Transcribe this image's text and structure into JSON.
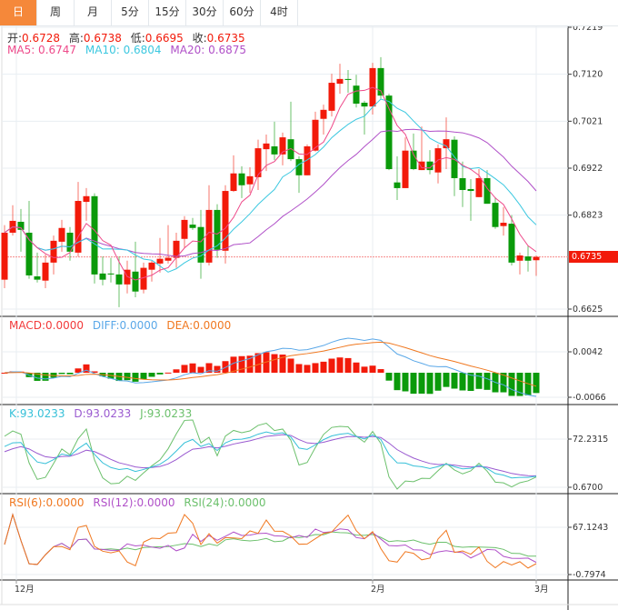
{
  "tabs": [
    {
      "label": "日",
      "active": true
    },
    {
      "label": "周"
    },
    {
      "label": "月"
    },
    {
      "label": "5分"
    },
    {
      "label": "15分"
    },
    {
      "label": "30分"
    },
    {
      "label": "60分"
    },
    {
      "label": "4时"
    }
  ],
  "ohlc_info": {
    "open_label": "开:",
    "open": "0.6728",
    "high_label": "高:",
    "high": "0.6738",
    "low_label": "低:",
    "low": "0.6695",
    "close_label": "收:",
    "close": "0.6735"
  },
  "ma_info": {
    "ma5": "MA5: 0.6747",
    "ma10": "MA10: 0.6804",
    "ma20": "MA20: 0.6875"
  },
  "macd_info": {
    "macd": "MACD:0.0000",
    "diff": "DIFF:0.0000",
    "dea": "DEA:0.0000"
  },
  "kdj_info": {
    "k": "K:93.0233",
    "d": "D:93.0233",
    "j": "J:93.0233"
  },
  "rsi_info": {
    "rsi6": "RSI(6):0.0000",
    "rsi12": "RSI(12):0.0000",
    "rsi24": "RSI(24):0.0000"
  },
  "colors": {
    "up": "#f21a0a",
    "down": "#0a9a0a",
    "ma5": "#ee4a8a",
    "ma10": "#3cc8e0",
    "ma20": "#b050c8",
    "diff": "#5aa8e8",
    "dea": "#f07820",
    "k": "#36c0d8",
    "d": "#9a5ad0",
    "j": "#6cc06c",
    "rsi6": "#f07820",
    "rsi12": "#b050c8",
    "rsi24": "#6cc06c",
    "accent": "#f5883a"
  },
  "chart_data": {
    "type": "candlestick",
    "price_axis": {
      "ticks": [
        "0.7219",
        "0.7120",
        "0.7021",
        "0.6922",
        "0.6823",
        "0.6625"
      ],
      "range": [
        0.6625,
        0.7219
      ],
      "last_price": "0.6735"
    },
    "macd_axis": {
      "ticks": [
        "0.0042",
        "-0.0066"
      ]
    },
    "kdj_axis": {
      "ticks": [
        "72.2315",
        "0.6700"
      ]
    },
    "rsi_axis": {
      "ticks": [
        "67.1243",
        "-0.7974"
      ]
    },
    "x_labels": [
      {
        "label": "12月",
        "index": 1
      },
      {
        "label": "2月",
        "index": 45
      },
      {
        "label": "3月",
        "index": 65
      }
    ],
    "candles": [
      [
        0.6687,
        0.6802,
        0.6669,
        0.6786
      ],
      [
        0.6786,
        0.6844,
        0.678,
        0.6811
      ],
      [
        0.6809,
        0.6836,
        0.6746,
        0.6792
      ],
      [
        0.6786,
        0.6853,
        0.6689,
        0.6696
      ],
      [
        0.6694,
        0.6744,
        0.6681,
        0.6687
      ],
      [
        0.6685,
        0.674,
        0.6669,
        0.6723
      ],
      [
        0.6723,
        0.678,
        0.6698,
        0.6769
      ],
      [
        0.6767,
        0.6813,
        0.6746,
        0.6796
      ],
      [
        0.6786,
        0.6798,
        0.6727,
        0.6746
      ],
      [
        0.6744,
        0.6893,
        0.6736,
        0.6853
      ],
      [
        0.6851,
        0.688,
        0.6811,
        0.6863
      ],
      [
        0.6863,
        0.6869,
        0.6679,
        0.6698
      ],
      [
        0.67,
        0.6736,
        0.6675,
        0.6687
      ],
      [
        0.67,
        0.6733,
        0.6681,
        0.6698
      ],
      [
        0.6698,
        0.6736,
        0.6629,
        0.6677
      ],
      [
        0.6677,
        0.6727,
        0.6658,
        0.6708
      ],
      [
        0.6704,
        0.6767,
        0.665,
        0.6662
      ],
      [
        0.6666,
        0.6723,
        0.6658,
        0.6712
      ],
      [
        0.6708,
        0.6727,
        0.6683,
        0.6723
      ],
      [
        0.6721,
        0.6775,
        0.6702,
        0.6731
      ],
      [
        0.6727,
        0.6802,
        0.6721,
        0.6733
      ],
      [
        0.6733,
        0.6786,
        0.6712,
        0.6769
      ],
      [
        0.6773,
        0.6821,
        0.6754,
        0.6813
      ],
      [
        0.6803,
        0.6817,
        0.6792,
        0.6796
      ],
      [
        0.6798,
        0.6834,
        0.6689,
        0.6723
      ],
      [
        0.6723,
        0.6886,
        0.6717,
        0.6834
      ],
      [
        0.6834,
        0.6846,
        0.6733,
        0.675
      ],
      [
        0.6748,
        0.6886,
        0.6721,
        0.6874
      ],
      [
        0.6874,
        0.6949,
        0.6872,
        0.6911
      ],
      [
        0.6911,
        0.6926,
        0.6859,
        0.6886
      ],
      [
        0.6888,
        0.6924,
        0.687,
        0.6905
      ],
      [
        0.6903,
        0.6982,
        0.6876,
        0.6964
      ],
      [
        0.6962,
        0.6993,
        0.6916,
        0.6974
      ],
      [
        0.6968,
        0.702,
        0.6939,
        0.6951
      ],
      [
        0.6951,
        0.6997,
        0.6928,
        0.6987
      ],
      [
        0.6983,
        0.7062,
        0.6937,
        0.6941
      ],
      [
        0.6941,
        0.6947,
        0.687,
        0.6907
      ],
      [
        0.6907,
        0.6972,
        0.6907,
        0.6968
      ],
      [
        0.6959,
        0.7041,
        0.6957,
        0.7024
      ],
      [
        0.7026,
        0.7056,
        0.6993,
        0.7045
      ],
      [
        0.7043,
        0.7121,
        0.7031,
        0.7102
      ],
      [
        0.71,
        0.7142,
        0.7079,
        0.711
      ],
      [
        0.711,
        0.7129,
        0.7081,
        0.7108
      ],
      [
        0.7096,
        0.7119,
        0.705,
        0.7058
      ],
      [
        0.706,
        0.7064,
        0.6993,
        0.7052
      ],
      [
        0.7052,
        0.7144,
        0.7035,
        0.7133
      ],
      [
        0.7133,
        0.7156,
        0.7068,
        0.7075
      ],
      [
        0.7075,
        0.7079,
        0.6918,
        0.692
      ],
      [
        0.6892,
        0.6947,
        0.6855,
        0.688
      ],
      [
        0.688,
        0.6987,
        0.688,
        0.6959
      ],
      [
        0.6959,
        0.6995,
        0.6918,
        0.692
      ],
      [
        0.6918,
        0.701,
        0.6918,
        0.6936
      ],
      [
        0.6936,
        0.696,
        0.6909,
        0.6918
      ],
      [
        0.6913,
        0.6972,
        0.689,
        0.6964
      ],
      [
        0.6964,
        0.7029,
        0.692,
        0.6983
      ],
      [
        0.6982,
        0.6989,
        0.6863,
        0.6901
      ],
      [
        0.6901,
        0.6936,
        0.684,
        0.6876
      ],
      [
        0.6878,
        0.6899,
        0.6811,
        0.6874
      ],
      [
        0.6861,
        0.692,
        0.6861,
        0.6901
      ],
      [
        0.6901,
        0.6918,
        0.6847,
        0.6847
      ],
      [
        0.6849,
        0.6861,
        0.6794,
        0.6798
      ],
      [
        0.68,
        0.684,
        0.678,
        0.6807
      ],
      [
        0.6805,
        0.6823,
        0.6717,
        0.6723
      ],
      [
        0.6727,
        0.6744,
        0.6698,
        0.6738
      ],
      [
        0.6736,
        0.6759,
        0.6704,
        0.6727
      ],
      [
        0.6728,
        0.6738,
        0.6695,
        0.6735
      ]
    ]
  }
}
